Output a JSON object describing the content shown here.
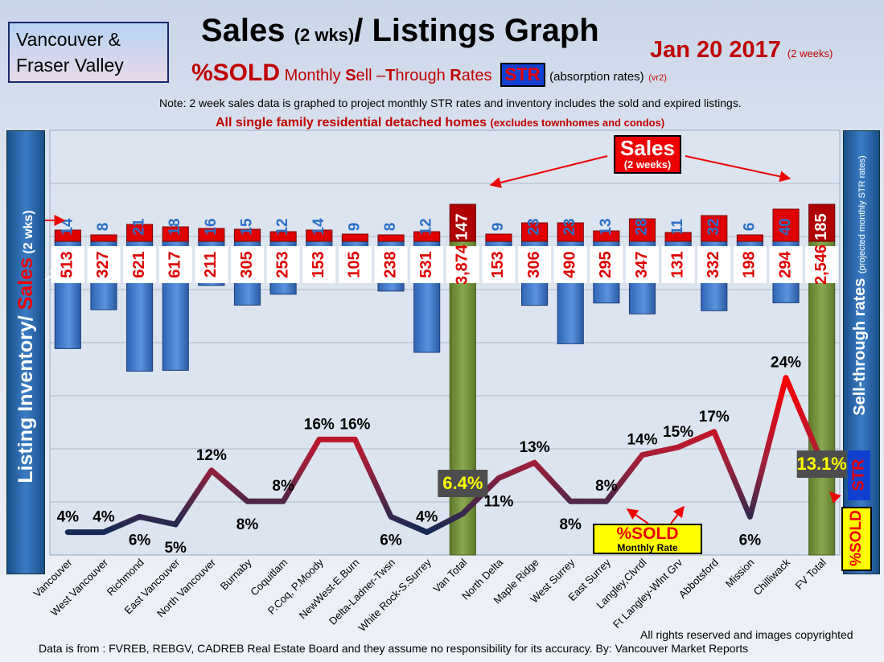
{
  "header": {
    "region_line1": "Vancouver &",
    "region_line2": "Fraser Valley",
    "title_a": "Sales ",
    "title_b": "(2 wks)",
    "title_c": "/ Listings Graph",
    "date": "Jan 20 2017",
    "date_note": "(2 weeks)",
    "sold_pct": "%SOLD",
    "sub_m": "M",
    "sub_onthly": "onthly ",
    "sub_s": "S",
    "sub_ell": "ell ",
    "sub_dash": "–",
    "sub_t": "T",
    "sub_hrough": "hrough ",
    "sub_r": "R",
    "sub_ates": "ates",
    "str_badge": "STR",
    "absorption": "(absorption rates)",
    "version": "(vr2)",
    "note": "Note: 2 week sales data is graphed to project monthly STR rates and inventory includes the sold and expired listings.",
    "scope": "All single family residential detached homes",
    "scope_note": "(excludes townhomes and condos)"
  },
  "side": {
    "left_a": "Listing Inventory/ ",
    "left_b": "Sales",
    "left_c": " (2 wks)",
    "right_a": "Sell-through rates",
    "right_b": "(projected monthly STR rates)",
    "str_vertical": "STR",
    "sold_vertical": "%SOLD"
  },
  "callouts": {
    "sales_title": "Sales",
    "sales_sub": "(2 weeks)",
    "sold_title": "%SOLD",
    "sold_sub": "Monthly Rate"
  },
  "footer": {
    "copyright": "All rights reserved and  images copyrighted",
    "source": "Data is from : FVREB, REBGV, CADREB Real Estate Board and they assume no responsibility for its accuracy. By: Vancouver Market Reports"
  },
  "colors": {
    "inventory_bar": "#4f85d0",
    "sales_bar": "#e00000",
    "total_bar": "#77933c",
    "accent_red": "#c00000",
    "str_blue": "#1040d0",
    "highlight_yellow": "#ffff00"
  },
  "chart_data": {
    "type": "bar",
    "categories": [
      "Vancouver",
      "West Vancouver",
      "Richmond",
      "East Vancouver",
      "North Vancouver",
      "Burnaby",
      "Coquitlam",
      "P.Coq, P.Moody",
      "NewWest-E.Burn",
      "Delta-Ladner-Twsn",
      "White Rock-S.Surrey",
      "Van Total",
      "North Delta",
      "Maple Ridge",
      "West Surrey",
      "East Surrey",
      "Langley,Clvrdl",
      "Ft Langley-Wlnt Grv",
      "Abbotsford",
      "Mission",
      "Chilliwack",
      "FV Total"
    ],
    "series": [
      {
        "values": [
          513,
          327,
          621,
          617,
          211,
          305,
          253,
          153,
          105,
          238,
          531,
          3874,
          153,
          306,
          490,
          295,
          347,
          131,
          332,
          198,
          294,
          2546
        ],
        "labels": [
          "513",
          "327",
          "621",
          "617",
          "211",
          "305",
          "253",
          "153",
          "105",
          "238",
          "531",
          "3,874",
          "153",
          "306",
          "490",
          "295",
          "347",
          "131",
          "332",
          "198",
          "294",
          "2,546"
        ]
      },
      {
        "values": [
          14,
          8,
          21,
          18,
          16,
          15,
          12,
          14,
          9,
          8,
          12,
          147,
          9,
          23,
          23,
          13,
          28,
          11,
          32,
          6,
          40,
          185
        ],
        "labels": [
          "14",
          "8",
          "21",
          "18",
          "16",
          "15",
          "12",
          "14",
          "9",
          "8",
          "12",
          "147",
          "9",
          "23",
          "23",
          "13",
          "28",
          "11",
          "32",
          "6",
          "40",
          "185"
        ]
      },
      {
        "values": [
          4,
          4,
          6,
          5,
          12,
          8,
          8,
          16,
          16,
          6,
          4,
          6.4,
          11,
          13,
          8,
          8,
          14,
          15,
          17,
          6,
          24,
          13.1
        ],
        "labels": [
          "4%",
          "4%",
          "6%",
          "5%",
          "12%",
          "8%",
          "8%",
          "16%",
          "16%",
          "6%",
          "4%",
          "6.4%",
          "11%",
          "13%",
          "8%",
          "8%",
          "14%",
          "15%",
          "17%",
          "6%",
          "24%",
          "13.1%"
        ]
      }
    ],
    "total_categories": [
      "Van Total",
      "FV Total"
    ],
    "grid": true
  }
}
